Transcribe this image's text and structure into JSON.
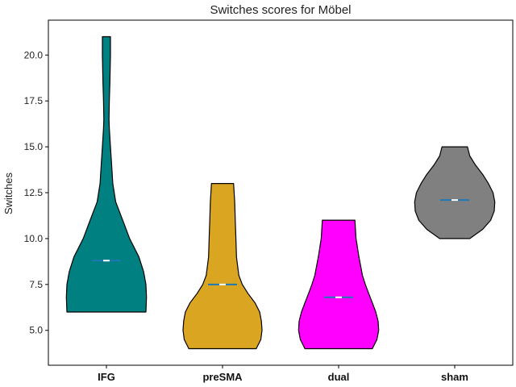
{
  "chart_data": {
    "type": "violin",
    "title": "Switches scores for Möbel",
    "xlabel": "",
    "ylabel": "Switches",
    "ylim": [
      3.1,
      21.9
    ],
    "yticks": [
      "5.0",
      "7.5",
      "10.0",
      "12.5",
      "15.0",
      "17.5",
      "20.0"
    ],
    "categories": [
      "IFG",
      "preSMA",
      "dual",
      "sham"
    ],
    "grid": false,
    "series": [
      {
        "category": "IFG",
        "color": "#008080",
        "min": 6,
        "max": 21,
        "mean": 8.8,
        "profile": [
          {
            "y": 6,
            "w": 0.34
          },
          {
            "y": 6.8,
            "w": 0.345
          },
          {
            "y": 7.5,
            "w": 0.34
          },
          {
            "y": 8.2,
            "w": 0.32
          },
          {
            "y": 9.0,
            "w": 0.28
          },
          {
            "y": 10.0,
            "w": 0.2
          },
          {
            "y": 11.0,
            "w": 0.14
          },
          {
            "y": 12.0,
            "w": 0.08
          },
          {
            "y": 13.0,
            "w": 0.055
          },
          {
            "y": 14.0,
            "w": 0.045
          },
          {
            "y": 15.0,
            "w": 0.035
          },
          {
            "y": 16.0,
            "w": 0.025
          },
          {
            "y": 16.5,
            "w": 0.022
          },
          {
            "y": 17.5,
            "w": 0.025
          },
          {
            "y": 18.5,
            "w": 0.03
          },
          {
            "y": 20.0,
            "w": 0.035
          },
          {
            "y": 21.0,
            "w": 0.035
          }
        ]
      },
      {
        "category": "preSMA",
        "color": "#DAA520",
        "min": 4,
        "max": 13,
        "mean": 7.5,
        "profile": [
          {
            "y": 4,
            "w": 0.29
          },
          {
            "y": 4.5,
            "w": 0.33
          },
          {
            "y": 5.0,
            "w": 0.34
          },
          {
            "y": 5.5,
            "w": 0.335
          },
          {
            "y": 6.0,
            "w": 0.32
          },
          {
            "y": 6.5,
            "w": 0.28
          },
          {
            "y": 7.0,
            "w": 0.22
          },
          {
            "y": 7.5,
            "w": 0.17
          },
          {
            "y": 8.0,
            "w": 0.14
          },
          {
            "y": 9.0,
            "w": 0.12
          },
          {
            "y": 10.0,
            "w": 0.115
          },
          {
            "y": 11.0,
            "w": 0.11
          },
          {
            "y": 12.0,
            "w": 0.105
          },
          {
            "y": 13.0,
            "w": 0.095
          }
        ]
      },
      {
        "category": "dual",
        "color": "#FF00FF",
        "min": 4,
        "max": 11,
        "mean": 6.8,
        "profile": [
          {
            "y": 4,
            "w": 0.29
          },
          {
            "y": 4.5,
            "w": 0.33
          },
          {
            "y": 5.0,
            "w": 0.345
          },
          {
            "y": 5.5,
            "w": 0.34
          },
          {
            "y": 6.0,
            "w": 0.32
          },
          {
            "y": 6.5,
            "w": 0.29
          },
          {
            "y": 7.0,
            "w": 0.26
          },
          {
            "y": 7.5,
            "w": 0.23
          },
          {
            "y": 8.0,
            "w": 0.205
          },
          {
            "y": 9.0,
            "w": 0.175
          },
          {
            "y": 10.0,
            "w": 0.15
          },
          {
            "y": 11.0,
            "w": 0.14
          }
        ]
      },
      {
        "category": "sham",
        "color": "#808080",
        "min": 10,
        "max": 15,
        "mean": 12.1,
        "profile": [
          {
            "y": 10,
            "w": 0.13
          },
          {
            "y": 10.5,
            "w": 0.24
          },
          {
            "y": 11.0,
            "w": 0.31
          },
          {
            "y": 11.5,
            "w": 0.34
          },
          {
            "y": 12.0,
            "w": 0.345
          },
          {
            "y": 12.5,
            "w": 0.33
          },
          {
            "y": 13.0,
            "w": 0.29
          },
          {
            "y": 13.5,
            "w": 0.24
          },
          {
            "y": 14.0,
            "w": 0.18
          },
          {
            "y": 14.5,
            "w": 0.13
          },
          {
            "y": 15.0,
            "w": 0.11
          }
        ]
      }
    ]
  }
}
